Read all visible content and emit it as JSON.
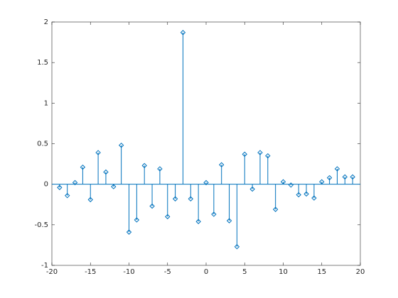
{
  "chart_data": {
    "type": "stem",
    "x": [
      -19,
      -18,
      -17,
      -16,
      -15,
      -14,
      -13,
      -12,
      -11,
      -10,
      -9,
      -8,
      -7,
      -6,
      -5,
      -4,
      -3,
      -2,
      -1,
      0,
      1,
      2,
      3,
      4,
      5,
      6,
      7,
      8,
      9,
      10,
      11,
      12,
      13,
      14,
      15,
      16,
      17,
      18,
      19
    ],
    "values": [
      -0.04,
      -0.14,
      0.02,
      0.21,
      -0.19,
      0.39,
      0.15,
      -0.03,
      0.48,
      -0.59,
      -0.44,
      0.23,
      -0.27,
      0.19,
      -0.4,
      -0.18,
      1.87,
      -0.18,
      -0.46,
      0.02,
      -0.37,
      0.24,
      -0.45,
      -0.77,
      0.37,
      -0.06,
      0.39,
      0.35,
      -0.31,
      0.03,
      -0.01,
      -0.13,
      -0.12,
      -0.17,
      0.03,
      0.08,
      0.19,
      0.09,
      0.09
    ],
    "color": "#0072bd",
    "xlim": [
      -20,
      20
    ],
    "xticks": [
      -20,
      -15,
      -10,
      -5,
      0,
      5,
      10,
      15,
      20
    ],
    "ylim": [
      -1,
      2
    ],
    "yticks": [
      -1,
      -0.5,
      0,
      0.5,
      1,
      1.5,
      2
    ]
  }
}
